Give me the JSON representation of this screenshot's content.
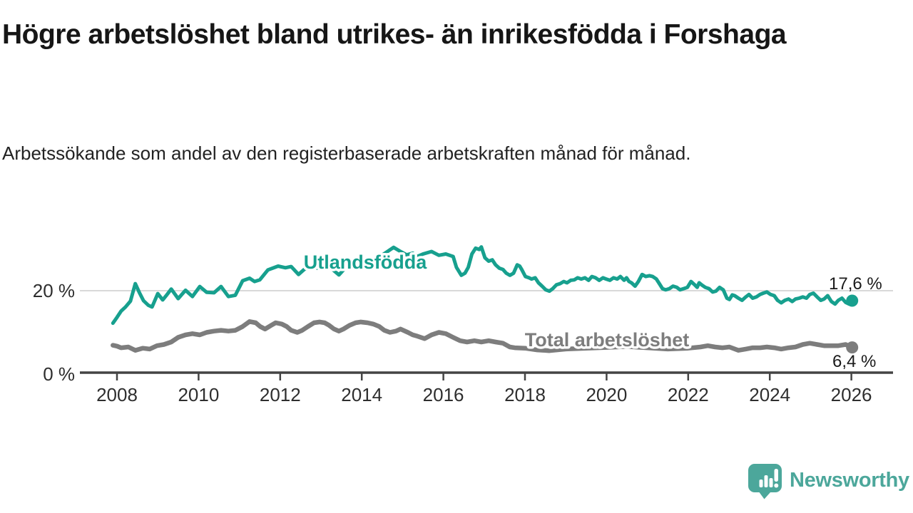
{
  "title": "Högre arbetslöshet bland utrikes- än inrikesfödda i Forshaga",
  "subtitle": "Arbetssökande som andel av den registerbaserade arbetskraften månad för månad.",
  "branding": {
    "logo_text": "Newsworthy",
    "logo_icon": "speech-bubble-bar-chart-exclamation",
    "color": "#4CA79B"
  },
  "chart_data": {
    "type": "line",
    "title": "Högre arbetslöshet bland utrikes- än inrikesfödda i Forshaga",
    "subtitle": "Arbetssökande som andel av den registerbaserade arbetskraften månad för månad.",
    "xlabel": "",
    "ylabel": "",
    "grid": "horizontal-20-only",
    "legend_position": "inline-on-lines",
    "x_ticks": [
      2008,
      2010,
      2012,
      2014,
      2016,
      2018,
      2020,
      2022,
      2024,
      2026
    ],
    "y_ticks": [
      {
        "value": 0,
        "label": "0 %"
      },
      {
        "value": 20,
        "label": "20 %"
      }
    ],
    "x_range": [
      2007.9,
      2026.1
    ],
    "y_range": [
      0,
      32
    ],
    "series": [
      {
        "name": "Utlandsfödda",
        "color": "#17A08E",
        "end_value": 17.6,
        "end_label": "17,6 %",
        "points": [
          [
            2007.9,
            12.2
          ],
          [
            2008.0,
            13.6
          ],
          [
            2008.1,
            15.1
          ],
          [
            2008.21,
            16.1
          ],
          [
            2008.33,
            17.5
          ],
          [
            2008.45,
            21.7
          ],
          [
            2008.55,
            19.5
          ],
          [
            2008.65,
            17.6
          ],
          [
            2008.77,
            16.5
          ],
          [
            2008.86,
            16.1
          ],
          [
            2009.0,
            19.3
          ],
          [
            2009.12,
            17.8
          ],
          [
            2009.22,
            19.0
          ],
          [
            2009.33,
            20.4
          ],
          [
            2009.5,
            18.1
          ],
          [
            2009.68,
            20.1
          ],
          [
            2009.85,
            18.6
          ],
          [
            2010.03,
            21.0
          ],
          [
            2010.2,
            19.6
          ],
          [
            2010.38,
            19.5
          ],
          [
            2010.55,
            21.0
          ],
          [
            2010.73,
            18.6
          ],
          [
            2010.9,
            18.9
          ],
          [
            2011.08,
            22.4
          ],
          [
            2011.25,
            23.0
          ],
          [
            2011.37,
            22.2
          ],
          [
            2011.5,
            22.6
          ],
          [
            2011.7,
            25.0
          ],
          [
            2011.95,
            25.9
          ],
          [
            2012.13,
            25.5
          ],
          [
            2012.27,
            25.8
          ],
          [
            2012.45,
            23.9
          ],
          [
            2012.6,
            25.2
          ],
          [
            2012.8,
            25.6
          ],
          [
            2013.0,
            25.3
          ],
          [
            2013.2,
            25.8
          ],
          [
            2013.44,
            23.8
          ],
          [
            2013.6,
            25.5
          ],
          [
            2013.8,
            26.3
          ],
          [
            2014.0,
            26.8
          ],
          [
            2014.2,
            27.4
          ],
          [
            2014.4,
            27.9
          ],
          [
            2014.6,
            29.2
          ],
          [
            2014.78,
            30.4
          ],
          [
            2014.95,
            29.4
          ],
          [
            2015.1,
            28.6
          ],
          [
            2015.25,
            29.0
          ],
          [
            2015.36,
            28.2
          ],
          [
            2015.5,
            28.8
          ],
          [
            2015.71,
            29.4
          ],
          [
            2015.89,
            28.5
          ],
          [
            2016.06,
            28.8
          ],
          [
            2016.24,
            28.2
          ],
          [
            2016.32,
            25.6
          ],
          [
            2016.44,
            23.7
          ],
          [
            2016.53,
            24.2
          ],
          [
            2016.61,
            25.6
          ],
          [
            2016.7,
            28.8
          ],
          [
            2016.79,
            30.2
          ],
          [
            2016.88,
            29.9
          ],
          [
            2016.93,
            30.5
          ],
          [
            2017.02,
            27.9
          ],
          [
            2017.11,
            27.1
          ],
          [
            2017.2,
            27.4
          ],
          [
            2017.28,
            26.2
          ],
          [
            2017.37,
            25.4
          ],
          [
            2017.46,
            25.1
          ],
          [
            2017.54,
            24.2
          ],
          [
            2017.63,
            23.7
          ],
          [
            2017.72,
            24.2
          ],
          [
            2017.81,
            26.2
          ],
          [
            2017.87,
            25.9
          ],
          [
            2017.92,
            25.1
          ],
          [
            2018.01,
            23.4
          ],
          [
            2018.1,
            23.1
          ],
          [
            2018.16,
            22.8
          ],
          [
            2018.25,
            23.1
          ],
          [
            2018.33,
            21.9
          ],
          [
            2018.42,
            21.1
          ],
          [
            2018.51,
            20.2
          ],
          [
            2018.6,
            19.9
          ],
          [
            2018.68,
            20.5
          ],
          [
            2018.77,
            21.4
          ],
          [
            2018.86,
            21.7
          ],
          [
            2018.95,
            22.2
          ],
          [
            2019.03,
            21.9
          ],
          [
            2019.12,
            22.5
          ],
          [
            2019.21,
            22.6
          ],
          [
            2019.29,
            23.1
          ],
          [
            2019.38,
            22.8
          ],
          [
            2019.47,
            23.1
          ],
          [
            2019.56,
            22.5
          ],
          [
            2019.64,
            23.4
          ],
          [
            2019.73,
            23.1
          ],
          [
            2019.82,
            22.5
          ],
          [
            2019.91,
            23.1
          ],
          [
            2019.99,
            22.8
          ],
          [
            2020.08,
            22.5
          ],
          [
            2020.17,
            23.1
          ],
          [
            2020.26,
            22.8
          ],
          [
            2020.34,
            23.4
          ],
          [
            2020.43,
            22.5
          ],
          [
            2020.49,
            23.1
          ],
          [
            2020.55,
            22.2
          ],
          [
            2020.61,
            21.9
          ],
          [
            2020.7,
            21.1
          ],
          [
            2020.78,
            22.2
          ],
          [
            2020.87,
            23.9
          ],
          [
            2020.96,
            23.4
          ],
          [
            2021.05,
            23.6
          ],
          [
            2021.13,
            23.4
          ],
          [
            2021.22,
            22.8
          ],
          [
            2021.28,
            21.9
          ],
          [
            2021.37,
            20.5
          ],
          [
            2021.45,
            20.2
          ],
          [
            2021.54,
            20.5
          ],
          [
            2021.63,
            21.1
          ],
          [
            2021.72,
            20.8
          ],
          [
            2021.8,
            20.2
          ],
          [
            2021.89,
            20.5
          ],
          [
            2021.98,
            20.8
          ],
          [
            2022.07,
            22.2
          ],
          [
            2022.16,
            21.4
          ],
          [
            2022.22,
            20.8
          ],
          [
            2022.27,
            21.9
          ],
          [
            2022.33,
            21.4
          ],
          [
            2022.42,
            20.8
          ],
          [
            2022.51,
            20.5
          ],
          [
            2022.6,
            19.7
          ],
          [
            2022.68,
            19.9
          ],
          [
            2022.77,
            20.8
          ],
          [
            2022.86,
            20.2
          ],
          [
            2022.95,
            18.2
          ],
          [
            2023.01,
            17.9
          ],
          [
            2023.08,
            19.0
          ],
          [
            2023.14,
            18.8
          ],
          [
            2023.23,
            18.2
          ],
          [
            2023.32,
            17.7
          ],
          [
            2023.41,
            18.5
          ],
          [
            2023.49,
            19.1
          ],
          [
            2023.58,
            18.2
          ],
          [
            2023.67,
            18.5
          ],
          [
            2023.76,
            19.1
          ],
          [
            2023.84,
            19.4
          ],
          [
            2023.93,
            19.7
          ],
          [
            2024.02,
            19.1
          ],
          [
            2024.11,
            18.8
          ],
          [
            2024.19,
            17.7
          ],
          [
            2024.28,
            17.1
          ],
          [
            2024.37,
            17.7
          ],
          [
            2024.46,
            18.0
          ],
          [
            2024.55,
            17.4
          ],
          [
            2024.63,
            18.0
          ],
          [
            2024.72,
            18.2
          ],
          [
            2024.81,
            18.5
          ],
          [
            2024.9,
            18.2
          ],
          [
            2024.98,
            19.1
          ],
          [
            2025.07,
            19.4
          ],
          [
            2025.16,
            18.5
          ],
          [
            2025.25,
            17.7
          ],
          [
            2025.33,
            18.0
          ],
          [
            2025.42,
            18.8
          ],
          [
            2025.51,
            17.4
          ],
          [
            2025.6,
            16.8
          ],
          [
            2025.68,
            17.7
          ],
          [
            2025.77,
            18.2
          ],
          [
            2025.86,
            17.2
          ],
          [
            2025.94,
            16.8
          ],
          [
            2026.02,
            17.6
          ]
        ]
      },
      {
        "name": "Total arbetslöshet",
        "color": "#7D7D7D",
        "end_value": 6.4,
        "end_label": "6,4 %",
        "points": [
          [
            2007.9,
            6.9
          ],
          [
            2008.0,
            6.7
          ],
          [
            2008.1,
            6.3
          ],
          [
            2008.28,
            6.5
          ],
          [
            2008.45,
            5.7
          ],
          [
            2008.63,
            6.2
          ],
          [
            2008.8,
            6.0
          ],
          [
            2008.98,
            6.8
          ],
          [
            2009.15,
            7.1
          ],
          [
            2009.33,
            7.7
          ],
          [
            2009.5,
            8.8
          ],
          [
            2009.68,
            9.4
          ],
          [
            2009.85,
            9.7
          ],
          [
            2010.03,
            9.4
          ],
          [
            2010.2,
            10.0
          ],
          [
            2010.38,
            10.3
          ],
          [
            2010.55,
            10.5
          ],
          [
            2010.73,
            10.3
          ],
          [
            2010.9,
            10.5
          ],
          [
            2011.08,
            11.4
          ],
          [
            2011.25,
            12.6
          ],
          [
            2011.4,
            12.3
          ],
          [
            2011.51,
            11.4
          ],
          [
            2011.63,
            10.8
          ],
          [
            2011.78,
            11.7
          ],
          [
            2011.89,
            12.3
          ],
          [
            2012.04,
            12.0
          ],
          [
            2012.16,
            11.4
          ],
          [
            2012.27,
            10.5
          ],
          [
            2012.42,
            10.0
          ],
          [
            2012.54,
            10.5
          ],
          [
            2012.68,
            11.4
          ],
          [
            2012.83,
            12.3
          ],
          [
            2012.97,
            12.5
          ],
          [
            2013.09,
            12.3
          ],
          [
            2013.2,
            11.7
          ],
          [
            2013.32,
            10.8
          ],
          [
            2013.44,
            10.3
          ],
          [
            2013.55,
            10.8
          ],
          [
            2013.7,
            11.7
          ],
          [
            2013.85,
            12.3
          ],
          [
            2013.97,
            12.5
          ],
          [
            2014.14,
            12.3
          ],
          [
            2014.28,
            12.0
          ],
          [
            2014.43,
            11.4
          ],
          [
            2014.55,
            10.5
          ],
          [
            2014.69,
            10.0
          ],
          [
            2014.84,
            10.3
          ],
          [
            2014.95,
            10.8
          ],
          [
            2015.13,
            10.0
          ],
          [
            2015.25,
            9.4
          ],
          [
            2015.36,
            9.1
          ],
          [
            2015.54,
            8.5
          ],
          [
            2015.71,
            9.4
          ],
          [
            2015.89,
            10.0
          ],
          [
            2016.06,
            9.7
          ],
          [
            2016.24,
            8.8
          ],
          [
            2016.41,
            8.0
          ],
          [
            2016.58,
            7.7
          ],
          [
            2016.76,
            8.0
          ],
          [
            2016.93,
            7.7
          ],
          [
            2017.11,
            8.0
          ],
          [
            2017.28,
            7.7
          ],
          [
            2017.46,
            7.4
          ],
          [
            2017.63,
            6.5
          ],
          [
            2017.75,
            6.3
          ],
          [
            2018.0,
            6.2
          ],
          [
            2018.3,
            5.8
          ],
          [
            2018.6,
            5.6
          ],
          [
            2019.0,
            6.0
          ],
          [
            2019.5,
            6.2
          ],
          [
            2020.0,
            6.4
          ],
          [
            2020.5,
            6.6
          ],
          [
            2021.0,
            6.3
          ],
          [
            2021.5,
            6.0
          ],
          [
            2022.0,
            6.2
          ],
          [
            2022.3,
            6.5
          ],
          [
            2022.48,
            6.8
          ],
          [
            2022.66,
            6.5
          ],
          [
            2022.84,
            6.3
          ],
          [
            2023.01,
            6.5
          ],
          [
            2023.23,
            5.7
          ],
          [
            2023.41,
            6.0
          ],
          [
            2023.58,
            6.3
          ],
          [
            2023.76,
            6.3
          ],
          [
            2023.93,
            6.5
          ],
          [
            2024.11,
            6.3
          ],
          [
            2024.28,
            6.0
          ],
          [
            2024.46,
            6.3
          ],
          [
            2024.63,
            6.5
          ],
          [
            2024.81,
            7.1
          ],
          [
            2024.98,
            7.4
          ],
          [
            2025.16,
            7.1
          ],
          [
            2025.33,
            6.8
          ],
          [
            2025.51,
            6.8
          ],
          [
            2025.68,
            6.8
          ],
          [
            2025.86,
            7.1
          ],
          [
            2026.02,
            6.4
          ]
        ]
      }
    ]
  }
}
